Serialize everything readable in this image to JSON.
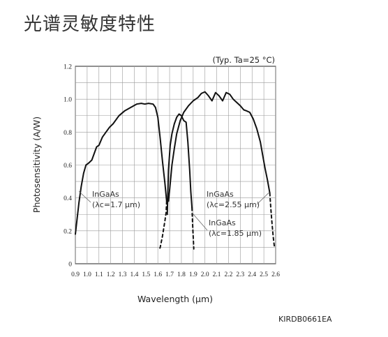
{
  "heading": "光谱灵敏度特性",
  "figure_id": "KIRDB0661EA",
  "chart_data": {
    "type": "line",
    "title": "",
    "condition_note": "(Typ. Ta=25 °C)",
    "xlabel": "Wavelength (μm)",
    "ylabel": "Photosensitivity (A/W)",
    "xlim": [
      0.9,
      2.6
    ],
    "ylim": [
      0,
      1.2
    ],
    "x_ticks": [
      "0.9",
      "1.0",
      "1.1",
      "1.2",
      "1.3",
      "1.4",
      "1.5",
      "1.6",
      "1.7",
      "1.8",
      "1.9",
      "2.0",
      "2.1",
      "2.2",
      "2.3",
      "2.4",
      "2.5",
      "2.6"
    ],
    "y_ticks": [
      "0",
      "0.2",
      "0.4",
      "0.6",
      "0.8",
      "1.0",
      "1.2"
    ],
    "grid": true,
    "series": [
      {
        "name": "InGaAs (λc=1.7 μm)",
        "style": "solid",
        "x": [
          0.9,
          0.93,
          0.95,
          0.97,
          0.99,
          1.01,
          1.04,
          1.08,
          1.1,
          1.13,
          1.16,
          1.19,
          1.22,
          1.27,
          1.32,
          1.37,
          1.42,
          1.46,
          1.49,
          1.52,
          1.56,
          1.58,
          1.6,
          1.62,
          1.64,
          1.66,
          1.675
        ],
        "y": [
          0.18,
          0.37,
          0.47,
          0.55,
          0.6,
          0.61,
          0.63,
          0.71,
          0.72,
          0.77,
          0.8,
          0.83,
          0.85,
          0.9,
          0.93,
          0.95,
          0.97,
          0.975,
          0.97,
          0.975,
          0.97,
          0.95,
          0.89,
          0.76,
          0.62,
          0.49,
          0.38
        ]
      },
      {
        "name": "InGaAs (λc=1.7 μm) cutoff",
        "style": "dashed",
        "x": [
          1.675,
          1.67,
          1.66,
          1.64,
          1.62,
          1.61
        ],
        "y": [
          0.38,
          0.31,
          0.26,
          0.17,
          0.1,
          0.08
        ]
      },
      {
        "name": "InGaAs (λc=1.85 μm)",
        "style": "solid",
        "x": [
          1.68,
          1.69,
          1.705,
          1.72,
          1.74,
          1.76,
          1.78,
          1.8,
          1.82,
          1.84,
          1.855,
          1.87,
          1.88,
          1.89
        ],
        "y": [
          0.3,
          0.57,
          0.72,
          0.79,
          0.85,
          0.89,
          0.91,
          0.9,
          0.87,
          0.86,
          0.74,
          0.57,
          0.44,
          0.34
        ]
      },
      {
        "name": "InGaAs (λc=1.85 μm) cutoff",
        "style": "dashed",
        "x": [
          1.89,
          1.895,
          1.9,
          1.905
        ],
        "y": [
          0.34,
          0.24,
          0.17,
          0.09
        ]
      },
      {
        "name": "InGaAs (λc=2.55 μm)",
        "style": "solid",
        "x": [
          1.69,
          1.7,
          1.72,
          1.74,
          1.76,
          1.79,
          1.82,
          1.86,
          1.9,
          1.94,
          1.97,
          2.0,
          2.03,
          2.06,
          2.09,
          2.12,
          2.15,
          2.18,
          2.21,
          2.24,
          2.27,
          2.3,
          2.33,
          2.35,
          2.38,
          2.41,
          2.44,
          2.47,
          2.49,
          2.51,
          2.53,
          2.55
        ],
        "y": [
          0.38,
          0.45,
          0.6,
          0.7,
          0.79,
          0.87,
          0.92,
          0.96,
          0.99,
          1.01,
          1.035,
          1.045,
          1.02,
          0.99,
          1.04,
          1.02,
          0.99,
          1.04,
          1.03,
          1.0,
          0.98,
          0.96,
          0.935,
          0.93,
          0.92,
          0.88,
          0.82,
          0.74,
          0.66,
          0.58,
          0.51,
          0.43
        ]
      },
      {
        "name": "InGaAs (λc=2.55 μm) cutoff",
        "style": "dashed",
        "x": [
          2.55,
          2.56,
          2.57,
          2.58,
          2.59
        ],
        "y": [
          0.43,
          0.33,
          0.24,
          0.16,
          0.1
        ]
      }
    ],
    "annotations": [
      {
        "line1": "InGaAs",
        "line2": "(λc=1.7 μm)",
        "target": [
          0.93,
          0.44
        ]
      },
      {
        "line1": "InGaAs",
        "line2": "(λc=2.55 μm)",
        "target": [
          2.54,
          0.43
        ]
      },
      {
        "line1": "InGaAs",
        "line2": "(λc=1.85 μm)",
        "target": [
          1.89,
          0.31
        ]
      }
    ]
  }
}
